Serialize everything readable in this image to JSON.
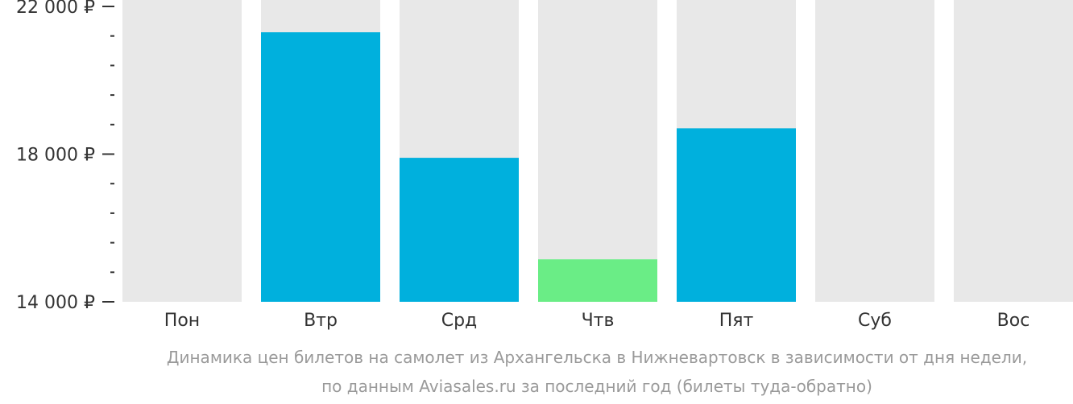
{
  "chart_data": {
    "type": "bar",
    "categories": [
      "Пон",
      "Втр",
      "Срд",
      "Чтв",
      "Пят",
      "Суб",
      "Вос"
    ],
    "values": [
      null,
      21300,
      17900,
      15150,
      18700,
      null,
      null
    ],
    "highlight_index": 3,
    "ylim": [
      14000,
      22000
    ],
    "yticks": [
      {
        "value": 14000,
        "label": "14 000 ₽"
      },
      {
        "value": 18000,
        "label": "18 000 ₽"
      },
      {
        "value": 22000,
        "label": "22 000 ₽"
      }
    ],
    "minor_tick_step": 800,
    "colors": {
      "bar": "#00b0dd",
      "highlight": "#6aed86",
      "background_bar": "#e8e8e8",
      "axis_text": "#333333"
    }
  },
  "caption": {
    "line1": "Динамика цен билетов на самолет из Архангельска в Нижневартовск в зависимости от дня недели,",
    "line2": "по данным Aviasales.ru за последний год (билеты туда-обратно)"
  }
}
